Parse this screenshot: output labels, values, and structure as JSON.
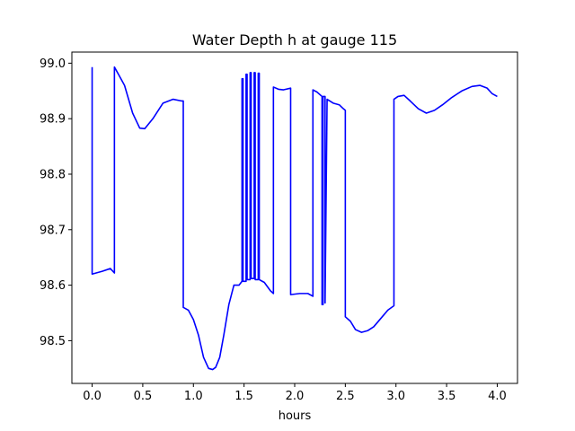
{
  "chart_data": {
    "type": "line",
    "title": "Water Depth h at gauge 115",
    "xlabel": "hours",
    "ylabel": "",
    "xlim": [
      -0.2,
      4.2
    ],
    "ylim": [
      98.423,
      99.02
    ],
    "xticks": [
      0.0,
      0.5,
      1.0,
      1.5,
      2.0,
      2.5,
      3.0,
      3.5,
      4.0
    ],
    "xtick_labels": [
      "0.0",
      "0.5",
      "1.0",
      "1.5",
      "2.0",
      "2.5",
      "3.0",
      "3.5",
      "4.0"
    ],
    "yticks": [
      98.5,
      98.6,
      98.7,
      98.8,
      98.9,
      99.0
    ],
    "ytick_labels": [
      "98.5",
      "98.6",
      "98.7",
      "98.8",
      "98.9",
      "99.0"
    ],
    "grid": false,
    "legend": "none",
    "series": [
      {
        "color": "#0000ff",
        "x": [
          0.0,
          0.0,
          0.1,
          0.18,
          0.22,
          0.22,
          0.26,
          0.32,
          0.4,
          0.47,
          0.52,
          0.6,
          0.7,
          0.8,
          0.88,
          0.9,
          0.9,
          0.95,
          1.0,
          1.05,
          1.1,
          1.15,
          1.19,
          1.22,
          1.26,
          1.3,
          1.35,
          1.4,
          1.45,
          1.48,
          1.48,
          1.49,
          1.49,
          1.52,
          1.52,
          1.53,
          1.53,
          1.56,
          1.56,
          1.57,
          1.57,
          1.6,
          1.6,
          1.61,
          1.61,
          1.64,
          1.64,
          1.65,
          1.65,
          1.7,
          1.76,
          1.79,
          1.79,
          1.84,
          1.89,
          1.96,
          1.96,
          2.05,
          2.13,
          2.18,
          2.18,
          2.22,
          2.27,
          2.27,
          2.28,
          2.28,
          2.3,
          2.3,
          2.32,
          2.38,
          2.44,
          2.48,
          2.5,
          2.5,
          2.55,
          2.6,
          2.66,
          2.72,
          2.78,
          2.85,
          2.92,
          2.98,
          2.98,
          3.02,
          3.08,
          3.14,
          3.22,
          3.3,
          3.38,
          3.46,
          3.55,
          3.65,
          3.75,
          3.83,
          3.9,
          3.95,
          4.0
        ],
        "y": [
          98.993,
          98.62,
          98.625,
          98.63,
          98.622,
          98.993,
          98.98,
          98.96,
          98.91,
          98.883,
          98.882,
          98.9,
          98.928,
          98.935,
          98.932,
          98.932,
          98.56,
          98.555,
          98.538,
          98.51,
          98.47,
          98.45,
          98.448,
          98.452,
          98.47,
          98.51,
          98.565,
          98.6,
          98.6,
          98.607,
          98.972,
          98.972,
          98.607,
          98.607,
          98.98,
          98.98,
          98.61,
          98.61,
          98.983,
          98.983,
          98.612,
          98.612,
          98.983,
          98.983,
          98.61,
          98.61,
          98.982,
          98.982,
          98.61,
          98.605,
          98.59,
          98.585,
          98.957,
          98.953,
          98.952,
          98.955,
          98.583,
          98.585,
          98.585,
          98.58,
          98.952,
          98.948,
          98.94,
          98.565,
          98.565,
          98.94,
          98.94,
          98.568,
          98.935,
          98.928,
          98.925,
          98.918,
          98.915,
          98.543,
          98.535,
          98.52,
          98.515,
          98.518,
          98.525,
          98.54,
          98.555,
          98.563,
          98.935,
          98.94,
          98.942,
          98.932,
          98.918,
          98.91,
          98.915,
          98.925,
          98.938,
          98.95,
          98.958,
          98.96,
          98.955,
          98.945,
          98.94
        ]
      }
    ]
  }
}
